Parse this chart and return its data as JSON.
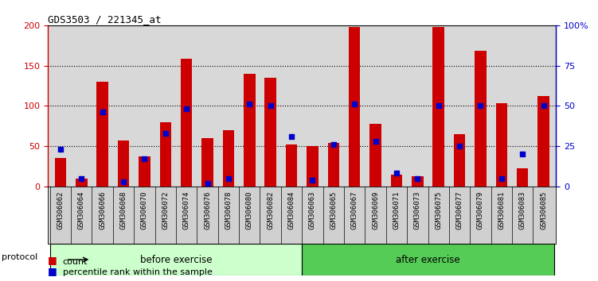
{
  "title": "GDS3503 / 221345_at",
  "categories": [
    "GSM306062",
    "GSM306064",
    "GSM306066",
    "GSM306068",
    "GSM306070",
    "GSM306072",
    "GSM306074",
    "GSM306076",
    "GSM306078",
    "GSM306080",
    "GSM306082",
    "GSM306084",
    "GSM306063",
    "GSM306065",
    "GSM306067",
    "GSM306069",
    "GSM306071",
    "GSM306073",
    "GSM306075",
    "GSM306077",
    "GSM306079",
    "GSM306081",
    "GSM306083",
    "GSM306085"
  ],
  "red_values": [
    35,
    10,
    130,
    57,
    37,
    80,
    158,
    60,
    70,
    140,
    135,
    52,
    50,
    54,
    198,
    78,
    14,
    12,
    198,
    65,
    168,
    103,
    22,
    112
  ],
  "blue_values": [
    23,
    5,
    46,
    3,
    17,
    33,
    48,
    2,
    5,
    51,
    50,
    31,
    4,
    26,
    51,
    28,
    8,
    5,
    50,
    25,
    50,
    5,
    20,
    50
  ],
  "before_exercise_count": 12,
  "after_exercise_count": 12,
  "before_color": "#ccffcc",
  "after_color": "#55cc55",
  "bar_color_red": "#cc0000",
  "bar_color_blue": "#0000cc",
  "ylim_left": [
    0,
    200
  ],
  "ylim_right": [
    0,
    100
  ],
  "yticks_left": [
    0,
    50,
    100,
    150,
    200
  ],
  "yticks_right": [
    0,
    25,
    50,
    75,
    100
  ],
  "ytick_labels_right": [
    "0",
    "25",
    "50",
    "75",
    "100%"
  ],
  "grid_color": "black",
  "bg_color": "#d8d8d8",
  "tick_bg_color": "#d0d0d0",
  "protocol_label": "protocol",
  "before_label": "before exercise",
  "after_label": "after exercise"
}
